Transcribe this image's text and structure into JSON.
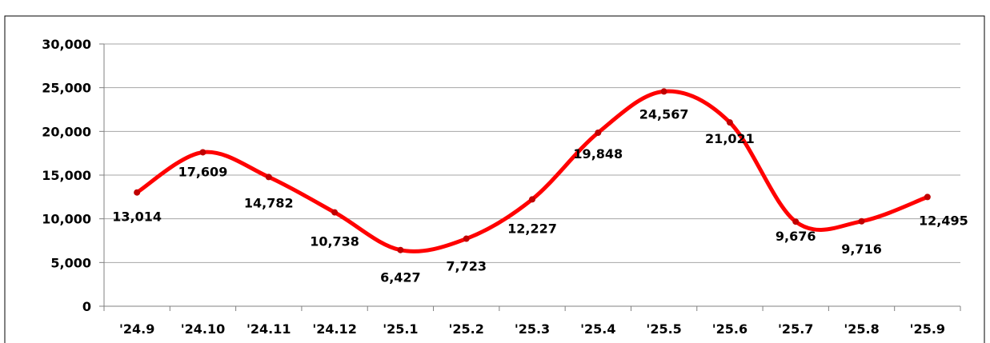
{
  "chart_data": {
    "type": "line",
    "title": "",
    "xlabel": "",
    "ylabel": "",
    "categories": [
      "'24.9",
      "'24.10",
      "'24.11",
      "'24.12",
      "'25.1",
      "'25.2",
      "'25.3",
      "'25.4",
      "'25.5",
      "'25.6",
      "'25.7",
      "'25.8",
      "'25.9"
    ],
    "series": [
      {
        "values": [
          13014,
          17609,
          14782,
          10738,
          6427,
          7723,
          12227,
          19848,
          24567,
          21021,
          9676,
          9716,
          12495
        ],
        "value_labels": [
          "13,014",
          "17,609",
          "14,782",
          "10,738",
          "6,427",
          "7,723",
          "12,227",
          "19,848",
          "24,567",
          "21,021",
          "9,676",
          "9,716",
          "12,495"
        ],
        "color": "#ff0000"
      }
    ],
    "ylim": [
      0,
      30000
    ],
    "yticks": [
      0,
      5000,
      10000,
      15000,
      20000,
      25000,
      30000
    ],
    "ytick_labels": [
      "0",
      "5,000",
      "10,000",
      "15,000",
      "20,000",
      "25,000",
      "30,000"
    ],
    "grid": true,
    "legend": "none",
    "line_color": "#ff0000",
    "marker_color": "#c00000"
  }
}
